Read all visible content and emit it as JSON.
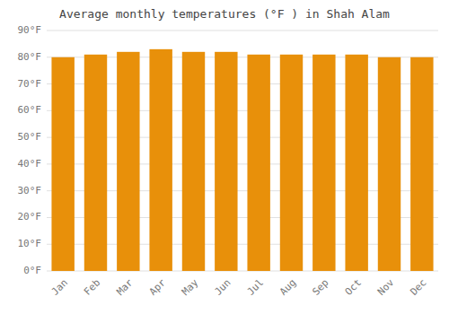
{
  "chart_data": {
    "type": "bar",
    "title": "Average monthly temperatures (°F ) in Shah Alam",
    "categories": [
      "Jan",
      "Feb",
      "Mar",
      "Apr",
      "May",
      "Jun",
      "Jul",
      "Aug",
      "Sep",
      "Oct",
      "Nov",
      "Dec"
    ],
    "values": [
      80,
      81,
      82,
      83,
      82,
      82,
      81,
      81,
      81,
      81,
      80,
      80
    ],
    "color": "#E8900A",
    "ylim": [
      0,
      90
    ],
    "yticks": [
      {
        "value": 0,
        "label": "0°F"
      },
      {
        "value": 10,
        "label": "10°F"
      },
      {
        "value": 20,
        "label": "20°F"
      },
      {
        "value": 30,
        "label": "30°F"
      },
      {
        "value": 40,
        "label": "40°F"
      },
      {
        "value": 50,
        "label": "50°F"
      },
      {
        "value": 60,
        "label": "60°F"
      },
      {
        "value": 70,
        "label": "70°F"
      },
      {
        "value": 80,
        "label": "80°F"
      },
      {
        "value": 90,
        "label": "90°F"
      }
    ],
    "grid": true
  }
}
